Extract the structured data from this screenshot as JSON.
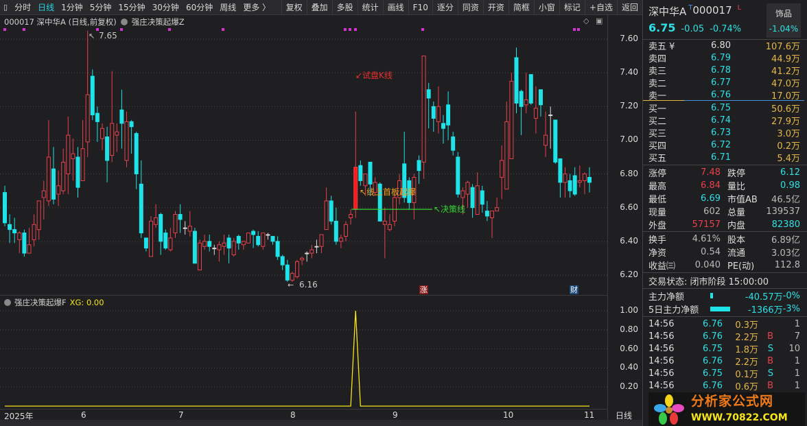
{
  "toolbar": {
    "periods": [
      "分时",
      "日线",
      "1分钟",
      "5分钟",
      "15分钟",
      "30分钟",
      "60分钟",
      "周线",
      "更多 〉"
    ],
    "active_period": "日线",
    "buttons": [
      "复权",
      "叠加",
      "多股",
      "统计",
      "画线",
      "F10",
      "逐分",
      "同资",
      "开资",
      "简框",
      "小窗",
      "标记",
      "+自选",
      "返回"
    ]
  },
  "main_panel": {
    "title": "000017 深中华A (日线,前复权)",
    "indicator": "强庄决策起爆Z"
  },
  "annotations": {
    "high_label": "7.65",
    "low_label": "6.16",
    "trial_k": "↙试盘K线",
    "first_board": "↖线上首板起爆",
    "decision_line": "↖决策线",
    "badge_zhang": "涨",
    "badge_cai": "财"
  },
  "indicator_panel": {
    "title": "强庄决策起爆F",
    "value_label": "XG: 0.00"
  },
  "date_axis": {
    "labels": [
      "2025年",
      "6",
      "7",
      "8",
      "9",
      "10",
      "11"
    ],
    "period": "日线"
  },
  "colors": {
    "up": "#e8414d",
    "down": "#1ee3e8",
    "signal": "#f5e51a",
    "decision": "#33d633",
    "marker": "#d633d6"
  },
  "chart_data": [
    {
      "type": "candlestick",
      "ylim": [
        6.12,
        7.68
      ],
      "yticks": [
        "7.60",
        "7.40",
        "7.20",
        "7.00",
        "6.80",
        "6.60",
        "6.40",
        "6.20"
      ],
      "ohlc": [
        [
          6.69,
          6.73,
          6.49,
          6.51
        ],
        [
          6.5,
          6.56,
          6.39,
          6.47
        ],
        [
          6.47,
          6.54,
          6.39,
          6.45
        ],
        [
          6.41,
          6.46,
          6.33,
          6.45
        ],
        [
          6.45,
          6.47,
          6.31,
          6.33
        ],
        [
          6.33,
          6.48,
          6.33,
          6.38
        ],
        [
          6.41,
          6.56,
          6.37,
          6.5
        ],
        [
          6.47,
          6.64,
          6.41,
          6.64
        ],
        [
          6.66,
          6.76,
          6.53,
          6.7
        ],
        [
          6.64,
          7.12,
          6.61,
          6.9
        ],
        [
          6.83,
          6.96,
          6.62,
          6.65
        ],
        [
          6.68,
          6.82,
          6.61,
          6.73
        ],
        [
          6.7,
          6.95,
          6.68,
          6.87
        ],
        [
          6.8,
          7.14,
          6.68,
          7.03
        ],
        [
          6.89,
          7.01,
          6.76,
          6.92
        ],
        [
          6.9,
          6.96,
          6.66,
          6.72
        ],
        [
          6.76,
          7.12,
          6.76,
          6.95
        ],
        [
          6.99,
          7.65,
          6.9,
          7.27
        ],
        [
          7.38,
          7.42,
          7.12,
          7.15
        ],
        [
          7.16,
          7.2,
          6.99,
          7.11
        ],
        [
          7.01,
          7.1,
          6.94,
          7.07
        ],
        [
          7.02,
          7.08,
          6.75,
          6.88
        ],
        [
          6.91,
          7.41,
          6.87,
          7.1
        ],
        [
          7.03,
          7.1,
          6.93,
          7.05
        ],
        [
          7.18,
          7.3,
          6.95,
          7.1
        ],
        [
          6.88,
          7.17,
          6.84,
          7.11
        ],
        [
          7.11,
          7.12,
          6.92,
          7.08
        ],
        [
          7.04,
          7.05,
          6.71,
          6.8
        ],
        [
          6.74,
          6.88,
          6.42,
          6.45
        ],
        [
          6.42,
          6.42,
          6.34,
          6.36
        ],
        [
          6.31,
          6.55,
          6.31,
          6.52
        ],
        [
          6.5,
          6.62,
          6.48,
          6.54
        ],
        [
          6.56,
          6.57,
          6.32,
          6.4
        ],
        [
          6.45,
          6.47,
          6.35,
          6.36
        ],
        [
          6.35,
          6.48,
          6.34,
          6.42
        ],
        [
          6.45,
          6.58,
          6.42,
          6.56
        ],
        [
          6.56,
          6.62,
          6.45,
          6.53
        ],
        [
          6.48,
          6.52,
          6.44,
          6.48
        ],
        [
          6.46,
          6.58,
          6.43,
          6.49
        ],
        [
          6.46,
          6.48,
          6.27,
          6.27
        ],
        [
          6.23,
          6.41,
          6.23,
          6.39
        ],
        [
          6.37,
          6.44,
          6.35,
          6.4
        ],
        [
          6.4,
          6.44,
          6.34,
          6.37
        ],
        [
          6.36,
          6.38,
          6.32,
          6.36
        ],
        [
          6.35,
          6.4,
          6.28,
          6.38
        ],
        [
          6.37,
          6.44,
          6.32,
          6.39
        ],
        [
          6.42,
          6.44,
          6.27,
          6.36
        ],
        [
          6.32,
          6.42,
          6.31,
          6.4
        ],
        [
          6.43,
          6.44,
          6.35,
          6.39
        ],
        [
          6.38,
          6.4,
          6.35,
          6.4
        ],
        [
          6.39,
          6.45,
          6.39,
          6.45
        ],
        [
          6.46,
          6.47,
          6.36,
          6.44
        ],
        [
          6.43,
          6.46,
          6.37,
          6.38
        ],
        [
          6.37,
          6.45,
          6.35,
          6.45
        ],
        [
          6.44,
          6.45,
          6.41,
          6.44
        ],
        [
          6.43,
          6.43,
          6.38,
          6.4
        ],
        [
          6.4,
          6.43,
          6.29,
          6.31
        ],
        [
          6.31,
          6.32,
          6.23,
          6.26
        ],
        [
          6.26,
          6.29,
          6.16,
          6.17
        ],
        [
          6.17,
          6.22,
          6.16,
          6.21
        ],
        [
          6.19,
          6.29,
          6.18,
          6.28
        ],
        [
          6.29,
          6.31,
          6.26,
          6.3
        ],
        [
          6.33,
          6.34,
          6.28,
          6.33
        ],
        [
          6.33,
          6.38,
          6.3,
          6.35
        ],
        [
          6.37,
          6.41,
          6.33,
          6.37
        ],
        [
          6.37,
          6.44,
          6.33,
          6.44
        ],
        [
          6.47,
          6.72,
          6.47,
          6.64
        ],
        [
          6.64,
          6.67,
          6.5,
          6.52
        ],
        [
          6.52,
          6.6,
          6.38,
          6.4
        ],
        [
          6.4,
          6.44,
          6.36,
          6.42
        ],
        [
          6.43,
          6.52,
          6.4,
          6.5
        ],
        [
          6.54,
          6.59,
          6.5,
          6.56
        ],
        [
          6.59,
          7.17,
          6.54,
          6.84
        ],
        [
          6.85,
          6.88,
          6.73,
          6.76
        ],
        [
          6.73,
          6.8,
          6.67,
          6.8
        ],
        [
          6.87,
          6.87,
          6.67,
          6.74
        ],
        [
          6.69,
          6.78,
          6.67,
          6.75
        ],
        [
          6.74,
          6.75,
          6.52,
          6.52
        ],
        [
          6.5,
          6.6,
          6.3,
          6.52
        ],
        [
          6.47,
          6.56,
          6.46,
          6.5
        ],
        [
          6.52,
          6.69,
          6.49,
          6.66
        ],
        [
          6.66,
          6.8,
          6.62,
          6.76
        ],
        [
          6.86,
          7.05,
          6.63,
          6.66
        ],
        [
          6.76,
          6.78,
          6.59,
          6.63
        ],
        [
          6.63,
          6.8,
          6.53,
          6.78
        ],
        [
          6.88,
          6.91,
          6.74,
          6.82
        ],
        [
          6.87,
          7.5,
          6.77,
          7.5
        ],
        [
          7.3,
          7.34,
          7.07,
          7.25
        ],
        [
          7.2,
          7.23,
          7.05,
          7.13
        ],
        [
          7.11,
          7.32,
          7.04,
          7.2
        ],
        [
          7.1,
          7.15,
          6.98,
          7.07
        ],
        [
          7.21,
          7.29,
          7.0,
          7.09
        ],
        [
          7.02,
          7.05,
          6.91,
          6.94
        ],
        [
          6.9,
          6.93,
          6.66,
          6.68
        ],
        [
          6.66,
          6.72,
          6.56,
          6.7
        ],
        [
          6.68,
          6.76,
          6.6,
          6.75
        ],
        [
          6.72,
          6.74,
          6.54,
          6.6
        ],
        [
          6.56,
          6.81,
          6.56,
          6.73
        ],
        [
          6.7,
          6.73,
          6.57,
          6.62
        ],
        [
          6.58,
          6.64,
          6.52,
          6.55
        ],
        [
          6.54,
          6.58,
          6.42,
          6.58
        ],
        [
          6.58,
          6.66,
          6.58,
          6.6
        ],
        [
          6.78,
          6.97,
          6.65,
          6.88
        ],
        [
          6.71,
          7.23,
          6.71,
          7.11
        ],
        [
          6.89,
          7.4,
          6.89,
          7.35
        ],
        [
          7.49,
          7.55,
          7.16,
          7.22
        ],
        [
          7.29,
          7.3,
          7.03,
          7.2
        ],
        [
          7.21,
          7.4,
          7.16,
          7.24
        ],
        [
          7.39,
          7.39,
          7.21,
          7.22
        ],
        [
          7.13,
          7.32,
          7.04,
          7.19
        ],
        [
          7.3,
          7.3,
          7.14,
          7.21
        ],
        [
          6.97,
          7.17,
          6.9,
          7.03
        ],
        [
          7.15,
          7.2,
          6.95,
          7.15
        ],
        [
          7.12,
          7.12,
          6.86,
          6.87
        ],
        [
          6.89,
          6.89,
          6.66,
          6.75
        ],
        [
          6.75,
          6.84,
          6.66,
          6.8
        ],
        [
          6.76,
          6.8,
          6.66,
          6.7
        ],
        [
          6.79,
          6.84,
          6.67,
          6.68
        ],
        [
          6.75,
          6.85,
          6.72,
          6.76
        ],
        [
          6.76,
          6.81,
          6.68,
          6.8
        ],
        [
          6.78,
          6.84,
          6.69,
          6.75
        ]
      ],
      "decision_line": 6.59
    },
    {
      "type": "line",
      "series": [
        {
          "name": "XG",
          "values": [
            0,
            0,
            0,
            0,
            0,
            0,
            0,
            0,
            0,
            0,
            0,
            0,
            0,
            0,
            0,
            0,
            0,
            0,
            0,
            0,
            0,
            0,
            0,
            0,
            0,
            0,
            0,
            0,
            0,
            0,
            0,
            0,
            0,
            0,
            0,
            0,
            0,
            0,
            0,
            0,
            0,
            0,
            0,
            0,
            0,
            0,
            0,
            0,
            0,
            0,
            0,
            0,
            0,
            0,
            0,
            0,
            0,
            0,
            0,
            0,
            0,
            0,
            0,
            0,
            0,
            0,
            0,
            0,
            0,
            0,
            0,
            0,
            1,
            0,
            0,
            0,
            0,
            0,
            0,
            0,
            0,
            0,
            0,
            0,
            0,
            0,
            0,
            0,
            0,
            0,
            0,
            0,
            0,
            0,
            0,
            0,
            0,
            0,
            0,
            0,
            0,
            0,
            0,
            0,
            0,
            0,
            0,
            0,
            0,
            0,
            0,
            0,
            0,
            0,
            0,
            0,
            0,
            0,
            0,
            0,
            0
          ]
        }
      ],
      "ylim": [
        0,
        1.1
      ],
      "yticks": [
        "1.00",
        "0.80",
        "0.60",
        "0.40",
        "0.20"
      ]
    }
  ],
  "quote": {
    "name": "深中华A",
    "t_mark": "T",
    "code": "000017",
    "l_mark": "L",
    "price": "6.75",
    "change": "-0.05",
    "change_pct": "-0.74%",
    "sector": "饰品",
    "sector_pct": "-1.04%",
    "sell": [
      {
        "label": "卖五 ¥",
        "price": "6.80",
        "vol": "107.6万"
      },
      {
        "label": "卖四",
        "price": "6.79",
        "vol": "44.9万"
      },
      {
        "label": "卖三",
        "price": "6.78",
        "vol": "41.2万"
      },
      {
        "label": "卖二",
        "price": "6.77",
        "vol": "47.0万"
      },
      {
        "label": "卖一",
        "price": "6.76",
        "vol": "17.0万"
      }
    ],
    "buy": [
      {
        "label": "买一",
        "price": "6.75",
        "vol": "50.6万"
      },
      {
        "label": "买二",
        "price": "6.74",
        "vol": "27.9万"
      },
      {
        "label": "买三",
        "price": "6.73",
        "vol": "3.0万"
      },
      {
        "label": "买四",
        "price": "6.72",
        "vol": "0.2万"
      },
      {
        "label": "买五",
        "price": "6.71",
        "vol": "5.4万"
      }
    ],
    "stats1": [
      [
        "涨停",
        "7.48",
        "跌停",
        "6.12"
      ],
      [
        "最高",
        "6.84",
        "量比",
        "0.98"
      ],
      [
        "最低",
        "6.69",
        "市值AB",
        "46.5亿"
      ],
      [
        "现量",
        "602",
        "总量",
        "139537"
      ],
      [
        "外盘",
        "57157",
        "内盘",
        "82380"
      ]
    ],
    "stats2": [
      [
        "换手",
        "4.61%",
        "股本",
        "6.89亿"
      ],
      [
        "净资",
        "0.54",
        "流通",
        "3.03亿"
      ],
      [
        "收益㈢",
        "0.040",
        "PE(动)",
        "112.8"
      ]
    ],
    "status": "交易状态: 闭市阶段 15:00:00",
    "flow": [
      {
        "label": "主力净额",
        "value": "-40.57万",
        "pct": "-0%"
      },
      {
        "label": "5日主力净额",
        "value": "-1366万",
        "pct": "-3%"
      }
    ],
    "ticks": [
      [
        "14:56",
        "6.76",
        "0.3万",
        "",
        "1"
      ],
      [
        "14:56",
        "6.76",
        "2.2万",
        "B",
        "7"
      ],
      [
        "14:56",
        "6.75",
        "1.8万",
        "S",
        "10"
      ],
      [
        "14:56",
        "6.76",
        "2.2万",
        "B",
        "1"
      ],
      [
        "14:56",
        "6.75",
        "0.1万",
        "S",
        "1"
      ],
      [
        "14:56",
        "6.76",
        "0.6万",
        "B",
        "1"
      ]
    ]
  },
  "logo": {
    "text": "分析家公式网",
    "url": "WWW.70822.COM"
  }
}
